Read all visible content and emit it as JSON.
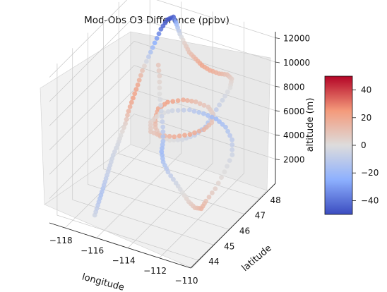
{
  "chart_data": {
    "type": "scatter",
    "projection": "3d",
    "title": "Mod-Obs O3 Difference (ppbv)",
    "xlabel": "longitude",
    "ylabel": "latitude",
    "zlabel": "altitude (m)",
    "x_ticks": [
      "−118",
      "−116",
      "−114",
      "−112",
      "−110"
    ],
    "y_ticks": [
      "44",
      "45",
      "46",
      "47",
      "48"
    ],
    "z_ticks": [
      "2000",
      "4000",
      "6000",
      "8000",
      "10000",
      "12000"
    ],
    "xlim": [
      -119,
      -110
    ],
    "ylim": [
      43.5,
      49
    ],
    "zlim": [
      0,
      12500
    ],
    "grid": true,
    "colorbar": {
      "colormap": "coolwarm",
      "min": -50,
      "max": 50,
      "ticks": [
        "40",
        "20",
        "0",
        "−20",
        "−40"
      ],
      "tick_values": [
        40,
        20,
        0,
        -20,
        -40
      ]
    },
    "flight_track": {
      "lon": [
        -116.6,
        -116.7,
        -116.8,
        -116.9,
        -117.0,
        -117.1,
        -117.2,
        -117.2,
        -117.2,
        -117.2,
        -117.3,
        -117.3,
        -117.3,
        -117.3,
        -117.2,
        -117.1,
        -117.0,
        -116.8,
        -116.4,
        -116.0,
        -115.5,
        -115.0,
        -114.5,
        -114.0,
        -113.5,
        -113.0,
        -112.5,
        -112.2,
        -112.0,
        -112.0,
        -112.0,
        -112.0,
        -112.0,
        -112.3,
        -112.8,
        -113.5,
        -114.2,
        -114.8,
        -115.2,
        -115.4,
        -115.2,
        -114.5,
        -113.8,
        -113.0,
        -112.5,
        -112.2,
        -112.3,
        -112.8,
        -113.5,
        -114.3,
        -115.0,
        -115.4,
        -115.3,
        -114.8,
        -114.0,
        -113.2,
        -112.4,
        -111.6,
        -110.8,
        -110.3,
        -110.2,
        -110.3,
        -110.5,
        -110.6,
        -111.0,
        -111.6,
        -112.3,
        -113.0,
        -113.8,
        -114.4,
        -114.8,
        -115.0,
        -115.4,
        -115.9,
        -116.4,
        -116.8,
        -117.2
      ],
      "lat": [
        44.0,
        44.3,
        44.6,
        44.9,
        45.2,
        45.5,
        45.8,
        46.1,
        46.3,
        46.6,
        46.9,
        47.2,
        47.5,
        47.8,
        48.1,
        48.4,
        48.7,
        48.9,
        48.9,
        48.7,
        48.4,
        48.2,
        48.0,
        47.9,
        47.8,
        47.8,
        47.9,
        48.1,
        48.2,
        48.1,
        47.6,
        47.0,
        46.5,
        46.1,
        45.8,
        45.7,
        45.8,
        46.1,
        46.5,
        46.9,
        47.3,
        47.6,
        47.7,
        47.7,
        47.5,
        47.1,
        46.7,
        46.3,
        46.0,
        45.9,
        46.0,
        46.4,
        46.9,
        47.2,
        47.5,
        47.6,
        47.6,
        47.4,
        47.0,
        46.5,
        45.9,
        45.4,
        45.0,
        44.8,
        44.8,
        45.0,
        45.3,
        45.6,
        45.9,
        46.2,
        46.5,
        46.8,
        47.2,
        47.6,
        48.0,
        48.4,
        48.7
      ],
      "alt": [
        1000,
        1400,
        1800,
        2200,
        2600,
        3000,
        3400,
        3900,
        4400,
        5000,
        5600,
        6300,
        7000,
        7800,
        8600,
        9400,
        10200,
        10800,
        11200,
        11000,
        10800,
        10500,
        10200,
        10000,
        9800,
        9600,
        9400,
        9200,
        8800,
        8200,
        7800,
        7400,
        7000,
        6700,
        6500,
        6300,
        6200,
        6300,
        6400,
        6600,
        6700,
        6800,
        6800,
        6700,
        6600,
        6500,
        6400,
        6300,
        6200,
        6100,
        6000,
        6100,
        6200,
        6300,
        6300,
        6200,
        6100,
        6000,
        5800,
        5400,
        4800,
        4000,
        3400,
        3000,
        2900,
        2900,
        3000,
        3100,
        3300,
        3500,
        3800,
        4200,
        4700,
        5300,
        6000,
        6800,
        7600
      ],
      "o3_diff": [
        -5,
        -10,
        -15,
        -12,
        -8,
        -6,
        -5,
        -3,
        0,
        5,
        15,
        22,
        20,
        10,
        -10,
        -25,
        -40,
        -48,
        -45,
        -20,
        -5,
        5,
        10,
        15,
        20,
        18,
        15,
        10,
        5,
        0,
        -5,
        -10,
        -15,
        -8,
        -3,
        0,
        5,
        10,
        15,
        20,
        22,
        18,
        12,
        8,
        5,
        10,
        15,
        20,
        18,
        12,
        8,
        5,
        0,
        -5,
        -10,
        -15,
        -20,
        -15,
        -10,
        -5,
        0,
        5,
        10,
        15,
        10,
        5,
        0,
        -5,
        -10,
        -15,
        -20,
        -15,
        -10,
        -5,
        0,
        5,
        10
      ]
    }
  }
}
